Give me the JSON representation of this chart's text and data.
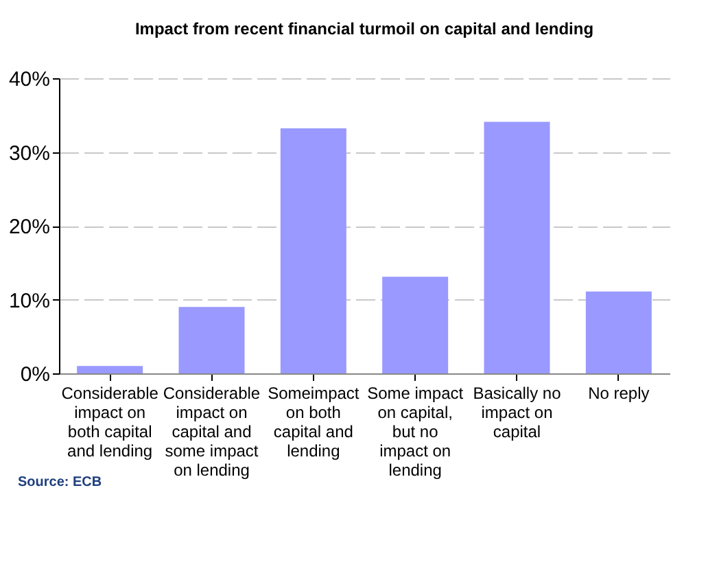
{
  "chart_data": {
    "type": "bar",
    "title": "Impact from recent financial turmoil on capital and lending",
    "categories": [
      "Considerable impact on both capital and lending",
      "Considerable impact on capital and some impact on lending",
      "Someimpact on both capital and lending",
      "Some impact on capital, but no impact on lending",
      "Basically no impact on capital",
      "No reply"
    ],
    "values": [
      1.0,
      9.0,
      33.2,
      13.1,
      34.1,
      11.1
    ],
    "color": "#9999ff",
    "ylim": [
      0,
      40
    ],
    "yticks": [
      {
        "value": 0,
        "label": "0%"
      },
      {
        "value": 10,
        "label": "10%"
      },
      {
        "value": 20,
        "label": "20%"
      },
      {
        "value": 30,
        "label": "30%"
      },
      {
        "value": 40,
        "label": "40%"
      }
    ],
    "grid": "y",
    "annotations": [
      "Source: ECB"
    ]
  }
}
